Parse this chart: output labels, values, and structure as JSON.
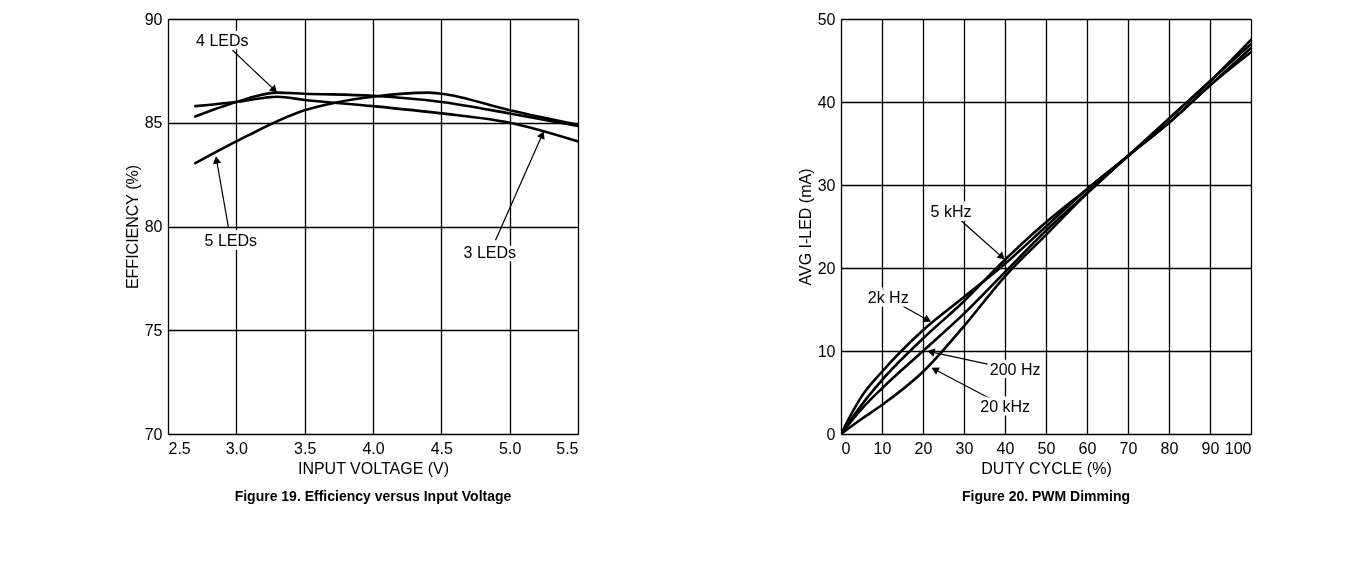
{
  "chart_data": [
    {
      "type": "line",
      "title": "Figure 19. Efficiency versus Input Voltage",
      "xlabel": "INPUT VOLTAGE (V)",
      "ylabel": "EFFICIENCY (%)",
      "series": [
        {
          "color": "#000000",
          "x": [
            2.7,
            3.0,
            3.3,
            3.5,
            4.0,
            4.5,
            5.0,
            5.5
          ],
          "values": [
            85.8,
            86.0,
            86.25,
            86.1,
            85.8,
            85.45,
            85.0,
            84.1
          ]
        },
        {
          "color": "#000000",
          "x": [
            2.7,
            3.0,
            3.3,
            3.5,
            4.0,
            4.5,
            5.0,
            5.5
          ],
          "values": [
            85.3,
            86.0,
            86.45,
            86.4,
            86.3,
            86.0,
            85.45,
            84.85
          ]
        },
        {
          "color": "#000000",
          "x": [
            2.7,
            3.0,
            3.5,
            3.75,
            4.0,
            4.4,
            4.5,
            5.0,
            5.5
          ],
          "values": [
            83.05,
            84.1,
            85.6,
            86.0,
            86.25,
            86.45,
            86.4,
            85.6,
            84.9
          ]
        }
      ],
      "annotations": [
        {
          "text": "4 LEDs",
          "x": 3.3,
          "y": 86.45
        },
        {
          "text": "5 LEDs",
          "x": 2.85,
          "y": 83.4
        },
        {
          "text": "3 LEDs",
          "x": 5.25,
          "y": 84.6
        }
      ],
      "xlim": [
        2.5,
        5.5
      ],
      "xticks": [
        2.5,
        {
          "value": 3,
          "label": "3.0"
        },
        3.5,
        {
          "value": 4,
          "label": "4.0"
        },
        4.5,
        {
          "value": 5,
          "label": "5.0"
        },
        5.5
      ],
      "ylim": [
        70,
        90
      ],
      "yticks": [
        70,
        75,
        80,
        85,
        90
      ],
      "grid": true,
      "marker": "none",
      "line_style": "solid"
    },
    {
      "type": "line",
      "title": "Figure 20. PWM Dimming",
      "xlabel": "DUTY CYCLE (%)",
      "ylabel": "AVG I-LED (mA)",
      "x": [
        0,
        5,
        10,
        20,
        30,
        40,
        50,
        60,
        70,
        80,
        90,
        100
      ],
      "series": [
        {
          "color": "#000000",
          "values": [
            0,
            3.5,
            6.5,
            11.5,
            16,
            21,
            25.5,
            29.5,
            33.5,
            37.5,
            42,
            46.5
          ]
        },
        {
          "color": "#000000",
          "values": [
            0,
            4.5,
            7.5,
            12.5,
            16.5,
            20.5,
            25,
            29.5,
            33.5,
            38,
            42.5,
            47.5
          ]
        },
        {
          "color": "#000000",
          "values": [
            0,
            3,
            5.5,
            10,
            14.5,
            19.5,
            24.5,
            29,
            33.5,
            37.5,
            42,
            46
          ]
        },
        {
          "color": "#000000",
          "values": [
            0,
            1.8,
            3.5,
            7.5,
            13,
            19,
            24,
            29,
            33.5,
            38,
            42.5,
            47
          ]
        }
      ],
      "annotations": [
        {
          "text": "5 kHz",
          "x": 40,
          "y": 21
        },
        {
          "text": "2k Hz",
          "x": 22,
          "y": 13.5
        },
        {
          "text": "200 Hz",
          "x": 21,
          "y": 10
        },
        {
          "text": "20 kHz",
          "x": 22,
          "y": 8
        }
      ],
      "xlim": [
        0,
        100
      ],
      "xticks": [
        0,
        10,
        20,
        30,
        40,
        50,
        60,
        70,
        80,
        90,
        100
      ],
      "ylim": [
        0,
        50
      ],
      "yticks": [
        0,
        10,
        20,
        30,
        40,
        50
      ],
      "grid": true,
      "marker": "none",
      "line_style": "solid"
    }
  ]
}
